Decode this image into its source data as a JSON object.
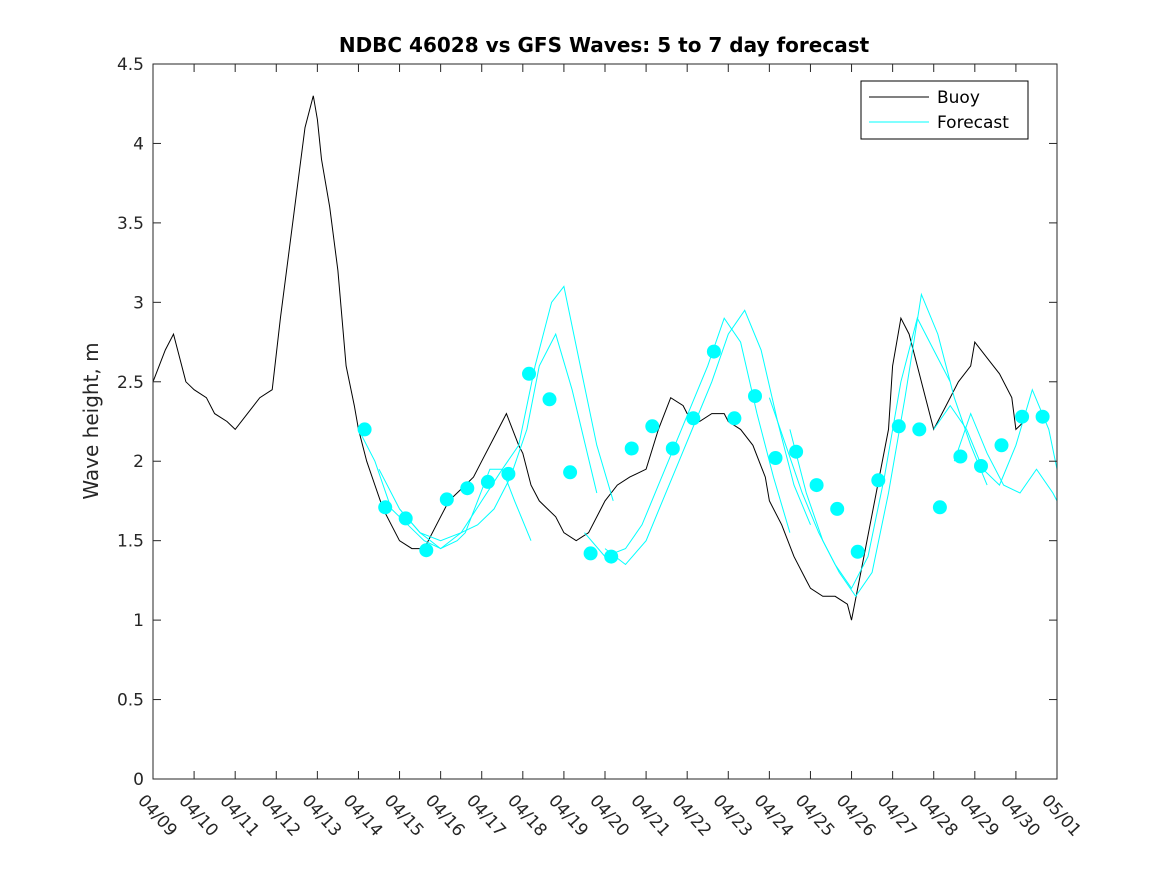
{
  "chart_data": {
    "type": "line",
    "title": "NDBC 46028 vs GFS Waves: 5 to 7 day forecast",
    "xlabel": "",
    "ylabel": "Wave height, m",
    "x_range_days": [
      0,
      22
    ],
    "ylim": [
      0,
      4.5
    ],
    "yticks": [
      "0",
      "0.5",
      "1",
      "1.5",
      "2",
      "2.5",
      "3",
      "3.5",
      "4",
      "4.5"
    ],
    "xticks": [
      "04/09",
      "04/10",
      "04/11",
      "04/12",
      "04/13",
      "04/14",
      "04/15",
      "04/16",
      "04/17",
      "04/18",
      "04/19",
      "04/20",
      "04/21",
      "04/22",
      "04/23",
      "04/24",
      "04/25",
      "04/26",
      "04/27",
      "04/28",
      "04/29",
      "04/30",
      "05/01"
    ],
    "grid": false,
    "legend_position": "top-right",
    "colors": {
      "buoy": "#000000",
      "forecast": "#00ffff",
      "marker": "#00ffff"
    },
    "series": [
      {
        "name": "Buoy",
        "x_days": [
          0,
          0.3,
          0.5,
          0.8,
          1,
          1.3,
          1.5,
          1.8,
          2,
          2.3,
          2.6,
          2.9,
          3.1,
          3.3,
          3.5,
          3.7,
          3.9,
          4,
          4.1,
          4.3,
          4.5,
          4.7,
          4.9,
          5,
          5.2,
          5.4,
          5.6,
          5.8,
          6,
          6.3,
          6.6,
          7,
          7.2,
          7.4,
          7.6,
          7.8,
          8,
          8.3,
          8.6,
          8.9,
          9,
          9.2,
          9.4,
          9.6,
          9.8,
          10,
          10.3,
          10.6,
          10.9,
          11,
          11.3,
          11.6,
          12,
          12.3,
          12.6,
          12.9,
          13,
          13.3,
          13.6,
          13.9,
          14,
          14.3,
          14.6,
          14.9,
          15,
          15.3,
          15.6,
          15.9,
          16,
          16.3,
          16.6,
          16.9,
          17,
          17.3,
          17.6,
          17.9,
          18,
          18.2,
          18.4,
          18.6,
          18.8,
          19,
          19.3,
          19.6,
          19.9,
          20,
          20.3,
          20.6,
          20.9,
          21,
          21.2
        ],
        "values": [
          2.5,
          2.7,
          2.8,
          2.5,
          2.45,
          2.4,
          2.3,
          2.25,
          2.2,
          2.3,
          2.4,
          2.45,
          2.9,
          3.3,
          3.7,
          4.1,
          4.3,
          4.15,
          3.9,
          3.6,
          3.2,
          2.6,
          2.35,
          2.2,
          2.0,
          1.85,
          1.7,
          1.6,
          1.5,
          1.45,
          1.45,
          1.65,
          1.75,
          1.8,
          1.85,
          1.9,
          2.0,
          2.15,
          2.3,
          2.1,
          2.05,
          1.85,
          1.75,
          1.7,
          1.65,
          1.55,
          1.5,
          1.55,
          1.7,
          1.75,
          1.85,
          1.9,
          1.95,
          2.2,
          2.4,
          2.35,
          2.3,
          2.25,
          2.3,
          2.3,
          2.25,
          2.2,
          2.1,
          1.9,
          1.75,
          1.6,
          1.4,
          1.25,
          1.2,
          1.15,
          1.15,
          1.1,
          1.0,
          1.4,
          1.8,
          2.2,
          2.6,
          2.9,
          2.8,
          2.6,
          2.4,
          2.2,
          2.35,
          2.5,
          2.6,
          2.75,
          2.65,
          2.55,
          2.4,
          2.2,
          2.25
        ]
      },
      {
        "name": "Forecast",
        "runs": [
          {
            "x_days": [
              5,
              5.4,
              5.8,
              6.2,
              6.6,
              7.0,
              7.4,
              7.6,
              7.9,
              8.2,
              8.5,
              8.8,
              9.2
            ],
            "values": [
              2.2,
              2.0,
              1.7,
              1.6,
              1.5,
              1.45,
              1.5,
              1.55,
              1.75,
              1.95,
              1.95,
              1.75,
              1.5
            ]
          },
          {
            "x_days": [
              5.5,
              6.0,
              6.5,
              7.0,
              7.5,
              7.9,
              8.3,
              8.7,
              9.1,
              9.4,
              9.8,
              10.2,
              10.8
            ],
            "values": [
              1.95,
              1.7,
              1.55,
              1.5,
              1.55,
              1.6,
              1.7,
              1.9,
              2.2,
              2.6,
              2.8,
              2.45,
              1.8
            ]
          },
          {
            "x_days": [
              6.0,
              6.5,
              7.0,
              7.5,
              8.0,
              8.5,
              8.9,
              9.3,
              9.7,
              10.0,
              10.4,
              10.8,
              11.2
            ],
            "values": [
              1.7,
              1.55,
              1.45,
              1.55,
              1.75,
              1.95,
              2.1,
              2.6,
              3.0,
              3.1,
              2.6,
              2.1,
              1.75
            ]
          },
          {
            "x_days": [
              10.5,
              11.0,
              11.5,
              11.9,
              12.3,
              12.7,
              13.1,
              13.5,
              13.9,
              14.3,
              14.7,
              15.1,
              15.5
            ],
            "values": [
              1.55,
              1.4,
              1.45,
              1.6,
              1.85,
              2.1,
              2.35,
              2.6,
              2.9,
              2.75,
              2.3,
              1.9,
              1.55
            ]
          },
          {
            "x_days": [
              11.0,
              11.5,
              12.0,
              12.4,
              12.8,
              13.2,
              13.6,
              14.0,
              14.4,
              14.8,
              15.2,
              15.6,
              16.0
            ],
            "values": [
              1.45,
              1.35,
              1.5,
              1.75,
              2.0,
              2.25,
              2.5,
              2.8,
              2.95,
              2.7,
              2.25,
              1.85,
              1.6
            ]
          },
          {
            "x_days": [
              15.0,
              15.4,
              15.8,
              16.2,
              16.6,
              17.0,
              17.4,
              17.8,
              18.2,
              18.6,
              19.0,
              19.4
            ],
            "values": [
              2.4,
              2.1,
              1.8,
              1.55,
              1.35,
              1.2,
              1.4,
              1.9,
              2.5,
              2.9,
              2.7,
              2.5
            ]
          },
          {
            "x_days": [
              15.5,
              15.9,
              16.3,
              16.7,
              17.1,
              17.5,
              17.9,
              18.3,
              18.7,
              19.1,
              19.5,
              19.9,
              20.3
            ],
            "values": [
              2.2,
              1.8,
              1.5,
              1.3,
              1.15,
              1.3,
              1.8,
              2.4,
              3.05,
              2.8,
              2.4,
              2.1,
              1.85
            ]
          },
          {
            "x_days": [
              19.0,
              19.4,
              19.8,
              20.2,
              20.6,
              21.0,
              21.4,
              21.8,
              22.0
            ],
            "values": [
              2.2,
              2.35,
              2.2,
              1.95,
              1.85,
              2.1,
              2.45,
              2.2,
              1.95
            ]
          },
          {
            "x_days": [
              19.5,
              19.9,
              20.3,
              20.7,
              21.1,
              21.5,
              21.9,
              22.0
            ],
            "values": [
              2.0,
              2.3,
              2.05,
              1.85,
              1.8,
              1.95,
              1.8,
              1.75
            ]
          }
        ]
      }
    ],
    "markers": {
      "x_days": [
        5.15,
        5.65,
        6.15,
        6.65,
        7.15,
        7.65,
        8.15,
        8.65,
        9.15,
        9.65,
        10.15,
        10.65,
        11.15,
        11.65,
        12.15,
        12.65,
        13.15,
        13.65,
        14.15,
        14.65,
        15.15,
        15.65,
        16.15,
        16.65,
        17.15,
        17.65,
        18.15,
        18.65,
        19.15,
        19.65,
        20.15,
        20.65,
        21.15,
        21.65
      ],
      "values": [
        2.2,
        1.71,
        1.64,
        1.44,
        1.76,
        1.83,
        1.87,
        1.92,
        2.55,
        2.39,
        1.93,
        1.42,
        1.4,
        2.08,
        2.22,
        2.08,
        2.27,
        2.69,
        2.27,
        2.41,
        2.02,
        2.06,
        1.85,
        1.7,
        1.43,
        1.88,
        2.22,
        2.2,
        1.71,
        2.03,
        1.97,
        2.1,
        2.28,
        2.28
      ]
    }
  }
}
